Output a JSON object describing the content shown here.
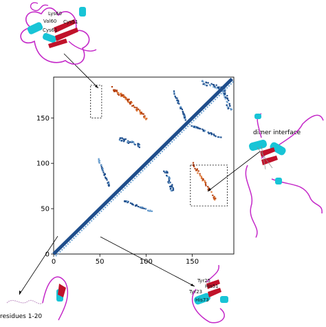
{
  "figure": {
    "annotations": {
      "dimer_interface": "dimer interface",
      "residues": "residues 1-20"
    },
    "top_structure_labels": [
      "Lys60",
      "Val60",
      "Cys61",
      "Cys51"
    ],
    "bottom_structure_labels": [
      "Tyr25",
      "His51",
      "Tyr23",
      "His73"
    ],
    "colors": {
      "intra_contact": "#1f4e8c",
      "intra_contact_light": "#6fa3d2",
      "inter_contact": "#b5400f",
      "inter_contact_light": "#e07b3a",
      "helix": "#18c4d6",
      "sheet": "#c0122a",
      "coil": "#c428c8"
    },
    "structure_icons": [
      "protein-structure-top",
      "protein-structure-right",
      "protein-structure-bottom-left",
      "protein-structure-bottom-right"
    ]
  },
  "chart_data": {
    "type": "heatmap",
    "title": "",
    "xlabel": "",
    "ylabel": "",
    "xlim": [
      0,
      195
    ],
    "ylim": [
      0,
      195
    ],
    "xticks": [
      "0",
      "50",
      "100",
      "150"
    ],
    "yticks": [
      "0",
      "50",
      "100",
      "150"
    ],
    "grid": false,
    "diagonal_segments": [
      [
        0,
        0,
        193,
        193
      ]
    ],
    "intra_blocks": [
      {
        "x": [
          48,
          60
        ],
        "y": [
          75,
          104
        ]
      },
      {
        "x": [
          70,
          93
        ],
        "y": [
          120,
          128
        ]
      },
      {
        "x": [
          128,
          142
        ],
        "y": [
          150,
          182
        ]
      },
      {
        "x": [
          160,
          185
        ],
        "y": [
          182,
          190
        ]
      }
    ],
    "inter_blocks": [
      {
        "x": [
          62,
          80
        ],
        "y": [
          170,
          184
        ]
      },
      {
        "x": [
          80,
          100
        ],
        "y": [
          150,
          170
        ]
      },
      {
        "x": [
          150,
          175
        ],
        "y": [
          60,
          100
        ]
      }
    ],
    "highlight_boxes": [
      {
        "x": [
          40,
          52
        ],
        "y": [
          150,
          186
        ]
      },
      {
        "x": [
          148,
          188
        ],
        "y": [
          53,
          98
        ]
      }
    ]
  }
}
